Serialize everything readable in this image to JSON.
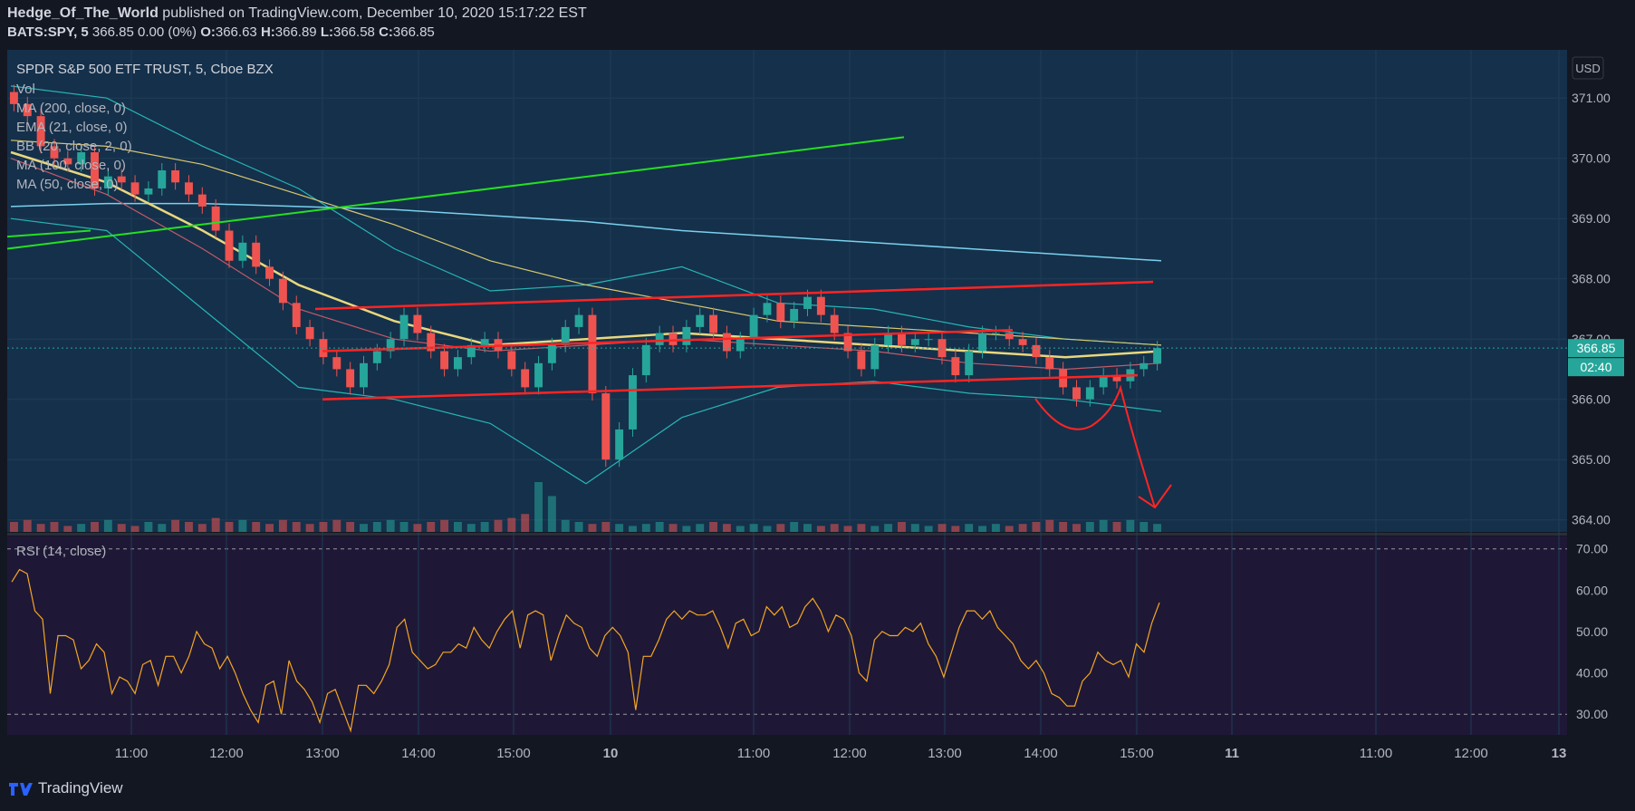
{
  "publish_line": {
    "user": "Hedge_Of_The_World",
    "text": "published on TradingView.com, December 10, 2020 15:17:22 EST"
  },
  "quote_line": {
    "symbol": "BATS:SPY, 5",
    "last": "366.85",
    "change": "0.00 (0%)",
    "o_label": "O:",
    "o": "366.63",
    "h_label": "H:",
    "h": "366.89",
    "l_label": "L:",
    "l": "366.58",
    "c_label": "C:",
    "c": "366.85"
  },
  "footer": {
    "brand": "TradingView"
  },
  "colors": {
    "bg": "#131722",
    "pane": "#15304a",
    "rsi_pane": "#1e1836",
    "up": "#26a69a",
    "down": "#ef5350",
    "ma200": "#79d1ee",
    "ema21": "#e8d77e",
    "bb": "#26b5b5",
    "ma100": "#d9c86f",
    "ma50": "#c25a6a",
    "rsi": "#f5a623",
    "trend_green": "#24e024",
    "trend_red": "#ff2424",
    "price_tag": "#26a69a"
  },
  "chart_data": [
    {
      "type": "candlestick",
      "title": "SPDR S&P 500 ETF TRUST, 5, Cboe BZX",
      "legend": [
        "Vol",
        "MA (200, close, 0)",
        "EMA (21, close, 0)",
        "BB (20, close, 2, 0)",
        "MA (100, close, 0)",
        "MA (50, close, 0)"
      ],
      "currency_label": "USD",
      "ylim": [
        363.8,
        371.8
      ],
      "y_ticks": [
        364.0,
        365.0,
        366.0,
        367.0,
        368.0,
        369.0,
        370.0,
        371.0
      ],
      "y_tick_labels": [
        "364.00",
        "365.00",
        "366.00",
        "367.00",
        "368.00",
        "369.00",
        "370.00",
        "371.00"
      ],
      "x_tick_labels": [
        "11:00",
        "12:00",
        "13:00",
        "14:00",
        "15:00",
        "10",
        "11:00",
        "12:00",
        "13:00",
        "14:00",
        "15:00",
        "11",
        "11:00",
        "12:00",
        "13"
      ],
      "last_price": "366.85",
      "countdown": "02:40",
      "candles_close": [
        370.9,
        370.7,
        370.2,
        370.0,
        369.9,
        370.1,
        369.5,
        369.7,
        369.6,
        369.4,
        369.5,
        369.8,
        369.6,
        369.4,
        369.2,
        368.8,
        368.3,
        368.6,
        368.2,
        368.0,
        367.6,
        367.2,
        367.0,
        366.7,
        366.5,
        366.2,
        366.6,
        366.8,
        367.0,
        367.4,
        367.1,
        366.8,
        366.5,
        366.7,
        366.9,
        367.0,
        366.8,
        366.5,
        366.2,
        366.6,
        366.9,
        367.2,
        367.4,
        366.1,
        365.0,
        365.5,
        366.4,
        366.9,
        367.1,
        366.9,
        367.2,
        367.4,
        367.1,
        366.8,
        367.0,
        367.4,
        367.6,
        367.3,
        367.5,
        367.7,
        367.4,
        367.1,
        366.8,
        366.5,
        366.9,
        367.1,
        366.9,
        367.0,
        367.0,
        366.7,
        366.4,
        366.8,
        367.1,
        367.1,
        367.0,
        366.9,
        366.7,
        366.5,
        366.2,
        366.0,
        366.2,
        366.4,
        366.3,
        366.5,
        366.6,
        366.85
      ],
      "volume_relative": [
        0.5,
        0.6,
        0.4,
        0.5,
        0.3,
        0.4,
        0.5,
        0.6,
        0.4,
        0.3,
        0.5,
        0.4,
        0.6,
        0.5,
        0.4,
        0.7,
        0.5,
        0.6,
        0.5,
        0.4,
        0.6,
        0.5,
        0.4,
        0.5,
        0.6,
        0.5,
        0.4,
        0.5,
        0.6,
        0.5,
        0.4,
        0.5,
        0.6,
        0.5,
        0.4,
        0.5,
        0.6,
        0.7,
        0.9,
        2.5,
        1.8,
        0.6,
        0.5,
        0.4,
        0.5,
        0.4,
        0.3,
        0.4,
        0.5,
        0.4,
        0.3,
        0.4,
        0.5,
        0.4,
        0.3,
        0.4,
        0.3,
        0.4,
        0.5,
        0.4,
        0.3,
        0.4,
        0.3,
        0.4,
        0.3,
        0.4,
        0.5,
        0.4,
        0.3,
        0.4,
        0.3,
        0.4,
        0.3,
        0.4,
        0.3,
        0.4,
        0.5,
        0.6,
        0.5,
        0.4,
        0.5,
        0.6,
        0.5,
        0.6,
        0.5,
        0.4
      ],
      "ma200": [
        369.2,
        369.25,
        369.25,
        369.2,
        369.15,
        369.05,
        368.95,
        368.8,
        368.7,
        368.6,
        368.5,
        368.4,
        368.3
      ],
      "ma100": [
        370.3,
        370.2,
        369.9,
        369.4,
        368.9,
        368.3,
        367.9,
        367.6,
        367.3,
        367.2,
        367.1,
        367.0,
        366.9
      ],
      "ema21": [
        370.1,
        369.6,
        368.8,
        367.9,
        367.3,
        366.9,
        367.0,
        367.1,
        367.0,
        366.9,
        366.8,
        366.7,
        366.8
      ],
      "ma50": [
        370.0,
        369.4,
        368.5,
        367.5,
        367.0,
        366.8,
        366.9,
        367.0,
        366.9,
        366.8,
        366.6,
        366.5,
        366.6
      ],
      "bb_upper": [
        371.2,
        371.0,
        370.2,
        369.5,
        368.5,
        367.8,
        367.9,
        368.2,
        367.6,
        367.5,
        367.2,
        367.0,
        366.9
      ],
      "bb_lower": [
        369.0,
        368.8,
        367.5,
        366.2,
        366.0,
        365.6,
        364.6,
        365.7,
        366.2,
        366.3,
        366.1,
        366.0,
        365.8
      ]
    },
    {
      "type": "line",
      "title": "RSI (14, close)",
      "ylim": [
        25,
        73
      ],
      "y_ticks": [
        30.0,
        40.0,
        50.0,
        60.0,
        70.0
      ],
      "y_tick_labels": [
        "30.00",
        "40.00",
        "50.00",
        "60.00",
        "70.00"
      ],
      "bands": [
        30,
        70
      ],
      "values": [
        62,
        65,
        64,
        55,
        53,
        35,
        49,
        49,
        48,
        41,
        43,
        47,
        45,
        35,
        39,
        38,
        35,
        42,
        43,
        37,
        44,
        44,
        40,
        44,
        50,
        47,
        46,
        41,
        44,
        40,
        35,
        31,
        28,
        37,
        38,
        30,
        43,
        38,
        36,
        33,
        28,
        35,
        36,
        31,
        26,
        37,
        37,
        35,
        38,
        42,
        51,
        53,
        45,
        43,
        41,
        42,
        45,
        45,
        47,
        46,
        51,
        48,
        46,
        50,
        53,
        55,
        46,
        54,
        55,
        54,
        43,
        49,
        54,
        52,
        51,
        46,
        44,
        49,
        51,
        49,
        45,
        31,
        44,
        44,
        48,
        53,
        55,
        53,
        55,
        54,
        54,
        55,
        51,
        46,
        52,
        53,
        49,
        50,
        56,
        54,
        56,
        51,
        52,
        56,
        58,
        55,
        50,
        54,
        53,
        49,
        40,
        38,
        48,
        50,
        49,
        49,
        51,
        50,
        52,
        47,
        44,
        39,
        45,
        51,
        55,
        55,
        53,
        55,
        51,
        49,
        47,
        43,
        41,
        43,
        40,
        35,
        34,
        32,
        32,
        38,
        40,
        45,
        43,
        42,
        43,
        39,
        47,
        45,
        52,
        57
      ]
    }
  ],
  "drawings": {
    "green_lines": [
      {
        "x1": 0,
        "y1": 368.5,
        "x2": 990,
        "y2": 370.35
      },
      {
        "x1": 0,
        "y1": 368.7,
        "x2": 92,
        "y2": 368.8
      }
    ],
    "red_lines": [
      {
        "x1": 340,
        "y1": 367.5,
        "x2": 1265,
        "y2": 367.95
      },
      {
        "x1": 348,
        "y1": 366.8,
        "x2": 1110,
        "y2": 367.15
      },
      {
        "x1": 348,
        "y1": 366.0,
        "x2": 1248,
        "y2": 366.4
      }
    ]
  }
}
